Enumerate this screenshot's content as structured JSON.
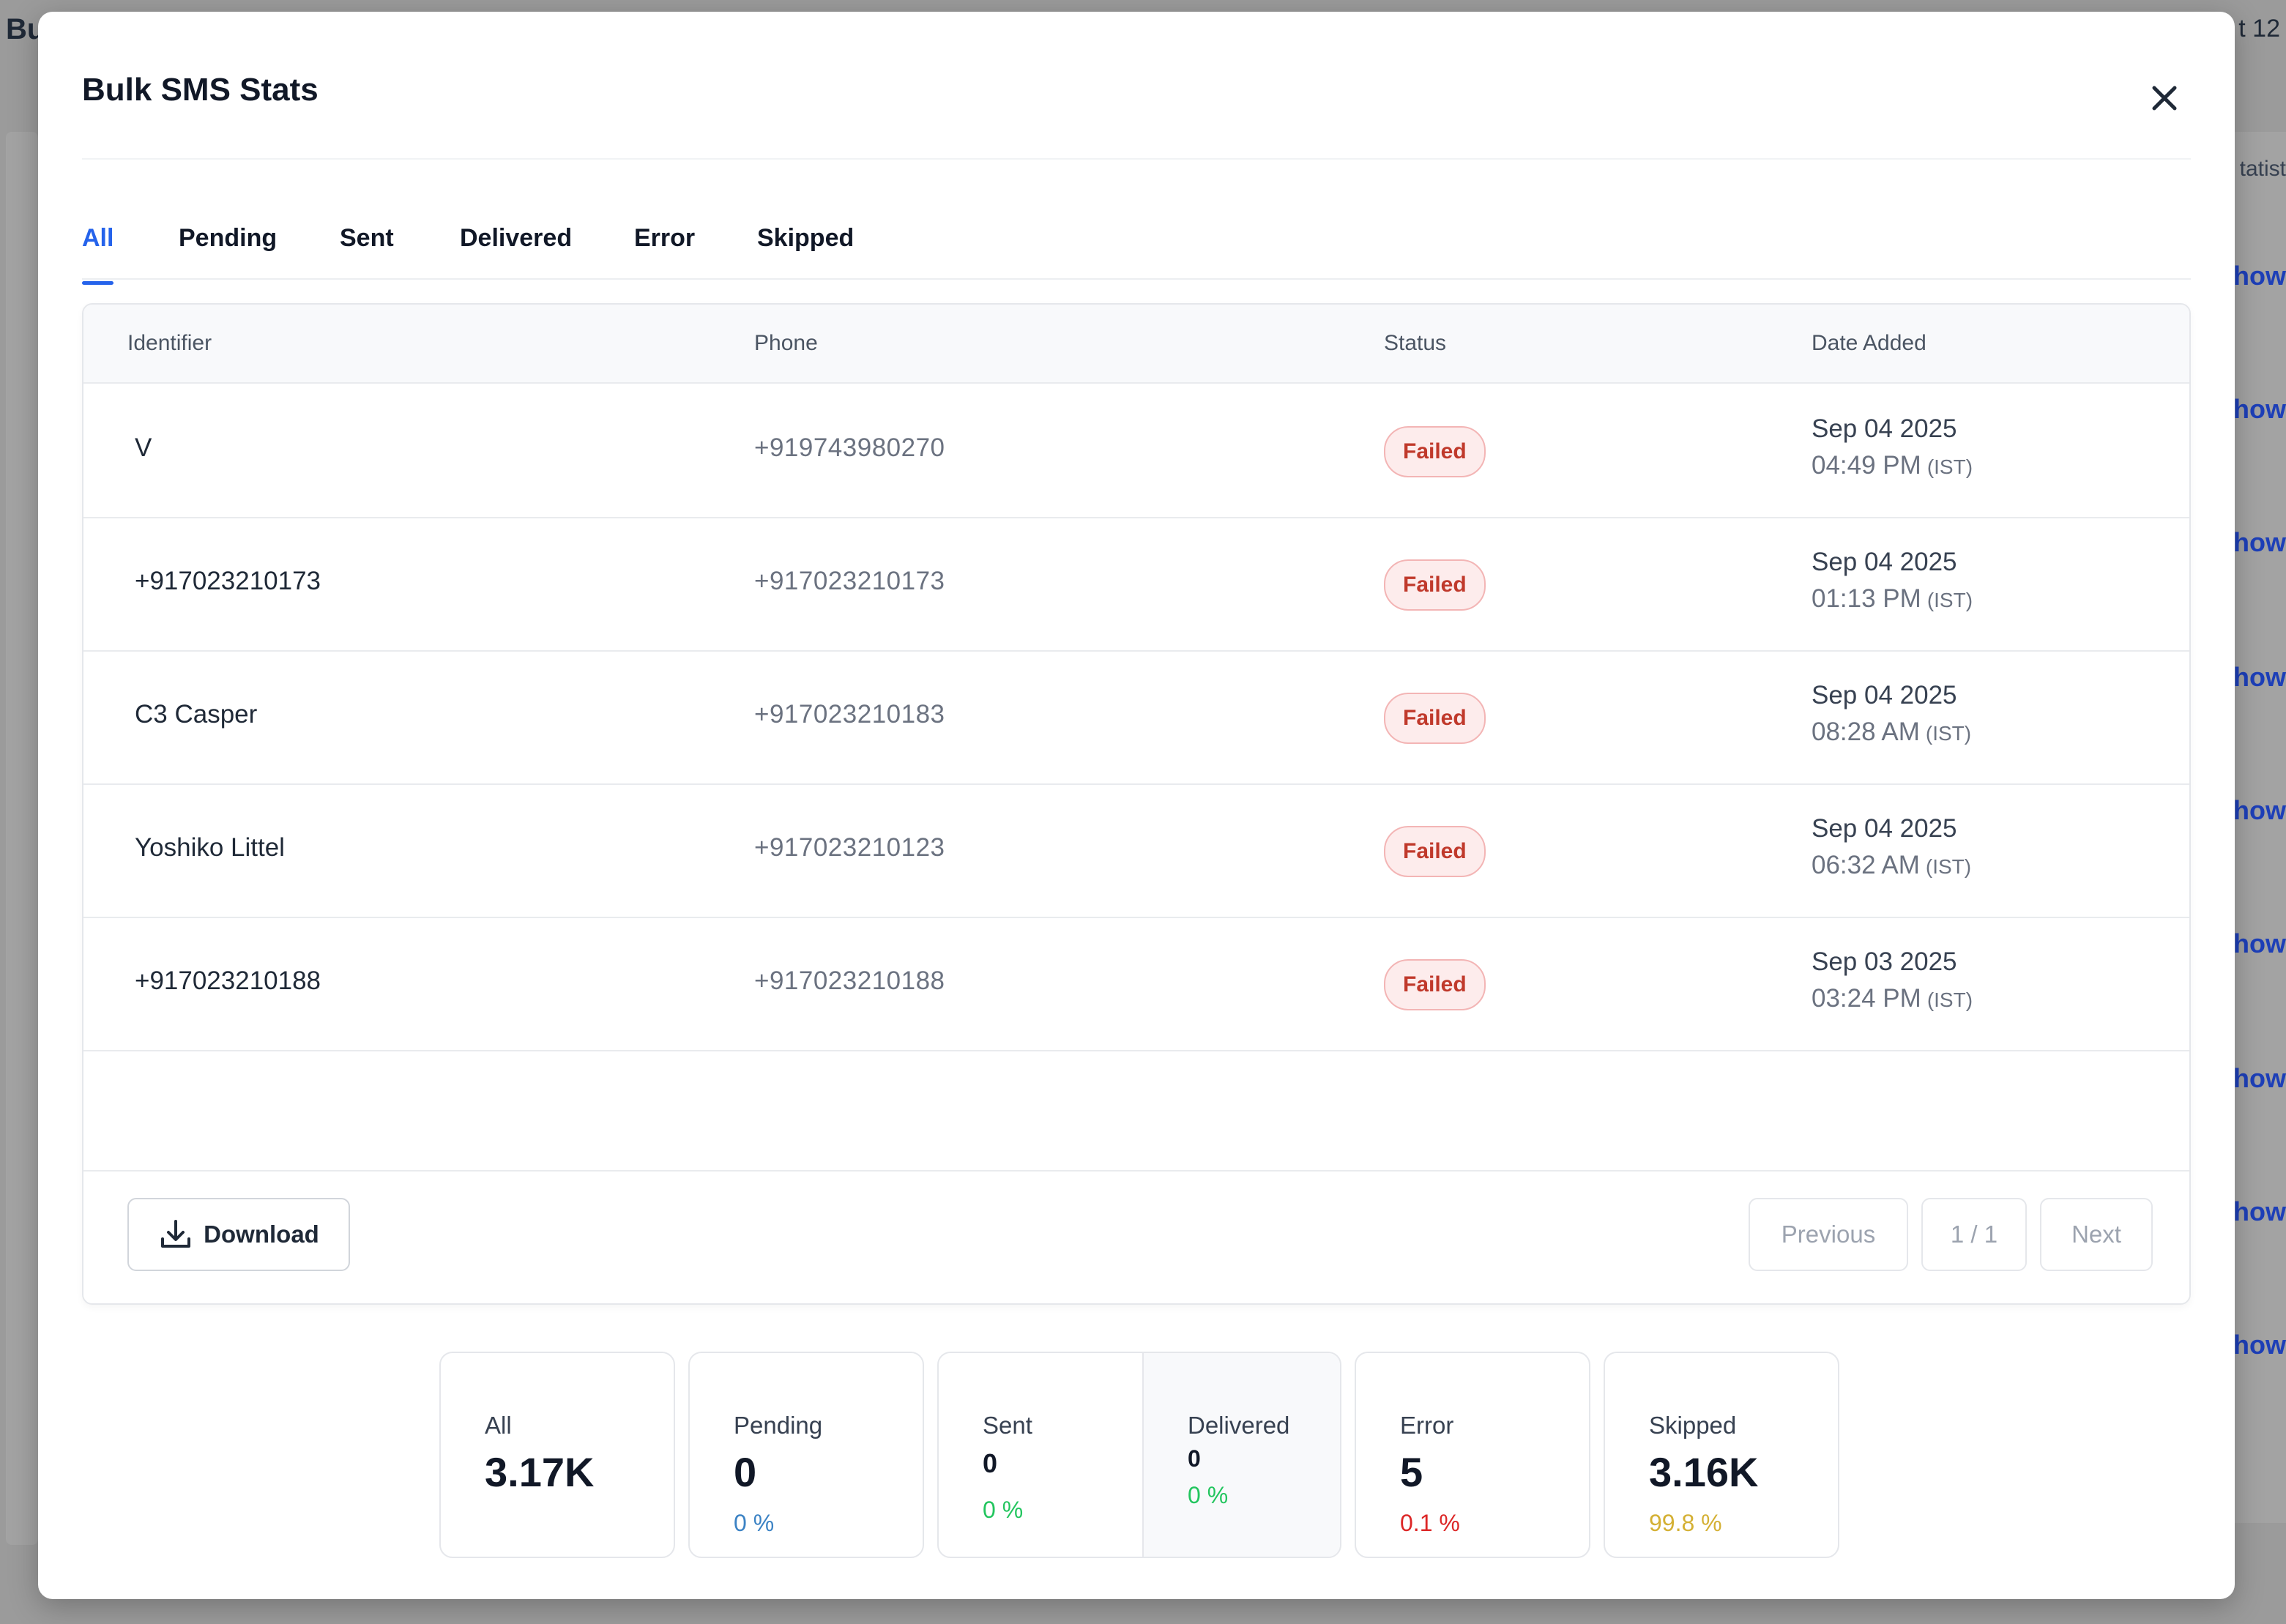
{
  "background": {
    "title_fragment": "Bu",
    "date_fragment": "t 12",
    "stat_fragment": "tatist",
    "show_labels": [
      "Show",
      "Show",
      "Show",
      "Show",
      "Show",
      "Show",
      "Show",
      "Show",
      "Show"
    ]
  },
  "modal": {
    "title": "Bulk SMS Stats",
    "close_icon": "close-icon"
  },
  "tabs": [
    {
      "label": "All",
      "active": true
    },
    {
      "label": "Pending",
      "active": false
    },
    {
      "label": "Sent",
      "active": false
    },
    {
      "label": "Delivered",
      "active": false
    },
    {
      "label": "Error",
      "active": false
    },
    {
      "label": "Skipped",
      "active": false
    }
  ],
  "table": {
    "headers": {
      "identifier": "Identifier",
      "phone": "Phone",
      "status": "Status",
      "date_added": "Date Added"
    },
    "rows": [
      {
        "identifier": "V",
        "phone": "+919743980270",
        "status": "Failed",
        "date": "Sep 04 2025",
        "time": "04:49 PM",
        "tz": "(IST)"
      },
      {
        "identifier": "+917023210173",
        "phone": "+917023210173",
        "status": "Failed",
        "date": "Sep 04 2025",
        "time": "01:13 PM",
        "tz": "(IST)"
      },
      {
        "identifier": "C3 Casper",
        "phone": "+917023210183",
        "status": "Failed",
        "date": "Sep 04 2025",
        "time": "08:28 AM",
        "tz": "(IST)"
      },
      {
        "identifier": "Yoshiko Littel",
        "phone": "+917023210123",
        "status": "Failed",
        "date": "Sep 04 2025",
        "time": "06:32 AM",
        "tz": "(IST)"
      },
      {
        "identifier": "+917023210188",
        "phone": "+917023210188",
        "status": "Failed",
        "date": "Sep 03 2025",
        "time": "03:24 PM",
        "tz": "(IST)"
      }
    ],
    "footer": {
      "download_label": "Download",
      "download_icon": "download-icon",
      "previous_label": "Previous",
      "page_indicator": "1 / 1",
      "next_label": "Next"
    }
  },
  "stats": {
    "all": {
      "label": "All",
      "value": "3.17K"
    },
    "pending": {
      "label": "Pending",
      "value": "0",
      "pct": "0 %"
    },
    "sent": {
      "label": "Sent",
      "value": "0",
      "pct": "0 %"
    },
    "delivered": {
      "label": "Delivered",
      "value": "0",
      "pct": "0 %"
    },
    "error": {
      "label": "Error",
      "value": "5",
      "pct": "0.1 %"
    },
    "skipped": {
      "label": "Skipped",
      "value": "3.16K",
      "pct": "99.8 %"
    }
  },
  "colors": {
    "accent": "#2563eb",
    "failed": "#c0392b",
    "pending_pct": "#3b82c4",
    "sent_pct": "#22c55e",
    "error_pct": "#dc2626",
    "skipped_pct": "#d4b034"
  }
}
